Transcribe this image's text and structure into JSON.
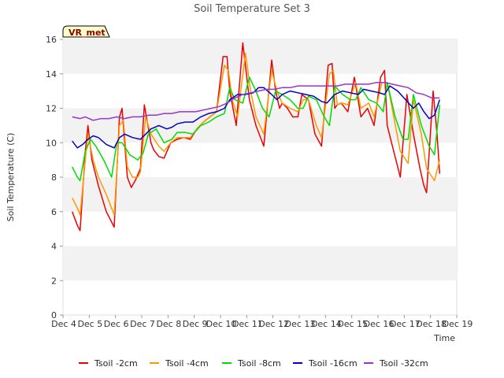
{
  "chart_data": {
    "type": "line",
    "title": "Soil Temperature Set 3",
    "xlabel": "Time",
    "ylabel": "Soil Temperature (C)",
    "badge": "VR_met",
    "xlim": [
      0,
      15
    ],
    "ylim": [
      0,
      16
    ],
    "yticks": [
      0,
      2,
      4,
      6,
      8,
      10,
      12,
      14,
      16
    ],
    "xticks": [
      "Dec 4",
      "Dec 5",
      "Dec 6",
      "Dec 7",
      "Dec 8",
      "Dec 9",
      "Dec 10",
      "Dec 11",
      "Dec 12",
      "Dec 13",
      "Dec 14",
      "Dec 15",
      "Dec 16",
      "Dec 17",
      "Dec 18",
      "Dec 19"
    ],
    "series": [
      {
        "name": "Tsoil -2cm",
        "color": "#ee0000",
        "x": [
          0.0,
          0.2,
          0.3,
          0.5,
          0.6,
          0.75,
          1.0,
          1.3,
          1.6,
          1.8,
          1.9,
          2.1,
          2.25,
          2.4,
          2.6,
          2.75,
          3.0,
          3.1,
          3.3,
          3.5,
          3.75,
          4.0,
          4.25,
          4.5,
          4.75,
          5.0,
          5.25,
          5.5,
          5.75,
          5.9,
          6.0,
          6.25,
          6.5,
          6.75,
          7.0,
          7.3,
          7.6,
          7.75,
          7.9,
          8.0,
          8.2,
          8.4,
          8.6,
          8.75,
          9.0,
          9.25,
          9.5,
          9.75,
          9.9,
          10.0,
          10.1,
          10.25,
          10.5,
          10.75,
          11.0,
          11.25,
          11.5,
          11.75,
          11.9,
          12.0,
          12.25,
          12.5,
          12.75,
          13.0,
          13.25,
          13.4,
          13.5,
          13.75,
          13.9,
          14.0
        ],
        "y": [
          6.0,
          5.2,
          4.9,
          9.5,
          11.0,
          9.0,
          7.5,
          6.0,
          5.1,
          11.5,
          12.0,
          8.0,
          7.4,
          7.8,
          8.5,
          12.2,
          10.0,
          9.6,
          9.2,
          9.1,
          10.0,
          10.2,
          10.3,
          10.2,
          10.8,
          11.2,
          11.5,
          11.8,
          15.0,
          15.0,
          13.0,
          11.0,
          15.8,
          12.5,
          11.0,
          9.8,
          14.8,
          13.0,
          12.0,
          12.3,
          12.0,
          11.5,
          11.5,
          12.8,
          12.5,
          10.5,
          9.8,
          14.5,
          14.6,
          12.0,
          12.2,
          12.3,
          11.8,
          13.8,
          11.5,
          12.0,
          11.0,
          13.8,
          14.2,
          11.0,
          9.5,
          8.0,
          12.8,
          10.5,
          8.5,
          7.5,
          7.1,
          13.0,
          10.5,
          8.2
        ]
      },
      {
        "name": "Tsoil -4cm",
        "color": "#ff9900",
        "x": [
          0.0,
          0.2,
          0.3,
          0.5,
          0.6,
          0.8,
          1.0,
          1.3,
          1.6,
          1.8,
          1.95,
          2.1,
          2.3,
          2.5,
          2.6,
          2.8,
          3.0,
          3.3,
          3.5,
          3.75,
          4.0,
          4.25,
          4.5,
          4.75,
          5.0,
          5.25,
          5.5,
          5.8,
          5.95,
          6.1,
          6.3,
          6.6,
          6.8,
          7.0,
          7.3,
          7.6,
          7.8,
          8.0,
          8.3,
          8.6,
          8.8,
          9.0,
          9.3,
          9.5,
          9.8,
          9.95,
          10.1,
          10.3,
          10.5,
          10.8,
          11.0,
          11.3,
          11.5,
          11.8,
          12.0,
          12.25,
          12.5,
          12.8,
          13.0,
          13.3,
          13.5,
          13.8,
          14.0
        ],
        "y": [
          6.8,
          6.2,
          5.8,
          9.0,
          10.5,
          9.0,
          8.0,
          7.0,
          5.8,
          11.0,
          11.3,
          8.6,
          8.0,
          8.0,
          8.3,
          11.5,
          10.5,
          9.8,
          9.5,
          10.0,
          10.3,
          10.3,
          10.3,
          10.8,
          11.2,
          11.5,
          11.8,
          14.5,
          14.2,
          12.5,
          11.5,
          15.2,
          13.0,
          11.5,
          10.5,
          14.2,
          13.0,
          12.3,
          12.0,
          11.8,
          12.5,
          12.5,
          11.0,
          10.3,
          14.0,
          14.2,
          12.2,
          12.3,
          12.2,
          13.5,
          12.0,
          12.3,
          11.5,
          13.5,
          13.5,
          11.5,
          9.5,
          8.8,
          12.5,
          10.5,
          8.5,
          7.8,
          9.0
        ]
      },
      {
        "name": "Tsoil -8cm",
        "color": "#00dd00",
        "x": [
          0.0,
          0.2,
          0.3,
          0.5,
          0.7,
          0.9,
          1.2,
          1.5,
          1.7,
          1.9,
          2.2,
          2.5,
          2.7,
          2.9,
          3.2,
          3.5,
          3.8,
          4.0,
          4.3,
          4.6,
          4.9,
          5.2,
          5.5,
          5.8,
          6.0,
          6.2,
          6.5,
          6.75,
          7.0,
          7.25,
          7.5,
          7.75,
          8.0,
          8.3,
          8.6,
          8.8,
          9.0,
          9.3,
          9.6,
          9.8,
          10.0,
          10.3,
          10.6,
          10.8,
          11.0,
          11.3,
          11.6,
          11.85,
          12.0,
          12.3,
          12.6,
          12.8,
          13.0,
          13.3,
          13.6,
          13.8,
          14.0
        ],
        "y": [
          8.6,
          8.0,
          7.8,
          9.5,
          10.2,
          9.8,
          9.0,
          8.0,
          10.0,
          10.0,
          9.3,
          9.0,
          9.4,
          10.5,
          10.8,
          10.0,
          10.2,
          10.6,
          10.6,
          10.5,
          11.0,
          11.2,
          11.5,
          11.7,
          13.2,
          12.5,
          12.3,
          13.8,
          13.0,
          12.0,
          11.5,
          13.0,
          12.8,
          12.5,
          12.0,
          12.0,
          12.7,
          12.5,
          11.5,
          11.0,
          13.3,
          12.8,
          12.5,
          12.5,
          13.2,
          12.5,
          12.3,
          11.8,
          13.5,
          11.5,
          10.2,
          10.2,
          12.8,
          11.0,
          9.8,
          9.3,
          12.2
        ]
      },
      {
        "name": "Tsoil -16cm",
        "color": "#0000cc",
        "x": [
          0.0,
          0.2,
          0.4,
          0.6,
          0.8,
          1.0,
          1.3,
          1.6,
          1.8,
          2.0,
          2.3,
          2.6,
          2.8,
          3.0,
          3.3,
          3.6,
          3.8,
          4.0,
          4.3,
          4.6,
          4.9,
          5.2,
          5.5,
          5.8,
          6.0,
          6.3,
          6.6,
          6.9,
          7.1,
          7.3,
          7.6,
          7.8,
          8.0,
          8.3,
          8.6,
          8.9,
          9.2,
          9.5,
          9.7,
          10.0,
          10.3,
          10.6,
          10.9,
          11.1,
          11.4,
          11.7,
          11.9,
          12.1,
          12.4,
          12.7,
          13.0,
          13.2,
          13.4,
          13.6,
          13.8,
          14.0
        ],
        "y": [
          10.1,
          9.7,
          9.9,
          10.2,
          10.4,
          10.3,
          9.9,
          9.7,
          10.3,
          10.5,
          10.3,
          10.2,
          10.5,
          10.8,
          11.0,
          10.8,
          10.9,
          11.1,
          11.2,
          11.2,
          11.5,
          11.7,
          11.8,
          12.0,
          12.5,
          12.8,
          12.8,
          12.9,
          13.2,
          13.2,
          12.8,
          12.5,
          12.8,
          13.0,
          12.9,
          12.8,
          12.7,
          12.4,
          12.3,
          12.8,
          13.0,
          12.9,
          12.8,
          13.1,
          13.0,
          12.9,
          12.8,
          13.3,
          13.0,
          12.5,
          12.0,
          12.3,
          11.8,
          11.4,
          11.6,
          12.5
        ]
      },
      {
        "name": "Tsoil -32cm",
        "color": "#9933cc",
        "x": [
          0.0,
          0.3,
          0.5,
          0.8,
          1.1,
          1.4,
          1.7,
          2.0,
          2.3,
          2.6,
          2.9,
          3.2,
          3.5,
          3.8,
          4.1,
          4.4,
          4.7,
          5.0,
          5.3,
          5.6,
          5.9,
          6.2,
          6.5,
          6.8,
          7.1,
          7.4,
          7.7,
          8.0,
          8.3,
          8.6,
          8.9,
          9.2,
          9.5,
          9.8,
          10.1,
          10.4,
          10.7,
          11.0,
          11.3,
          11.6,
          11.9,
          12.2,
          12.5,
          12.8,
          13.1,
          13.4,
          13.7,
          14.0
        ],
        "y": [
          11.5,
          11.4,
          11.5,
          11.3,
          11.4,
          11.4,
          11.5,
          11.4,
          11.5,
          11.5,
          11.6,
          11.6,
          11.7,
          11.7,
          11.8,
          11.8,
          11.8,
          11.9,
          12.0,
          12.1,
          12.3,
          12.6,
          12.8,
          12.9,
          13.0,
          13.1,
          13.1,
          13.2,
          13.2,
          13.3,
          13.3,
          13.3,
          13.3,
          13.3,
          13.3,
          13.4,
          13.4,
          13.4,
          13.4,
          13.5,
          13.5,
          13.4,
          13.3,
          13.2,
          12.9,
          12.8,
          12.6,
          12.6
        ]
      }
    ]
  }
}
